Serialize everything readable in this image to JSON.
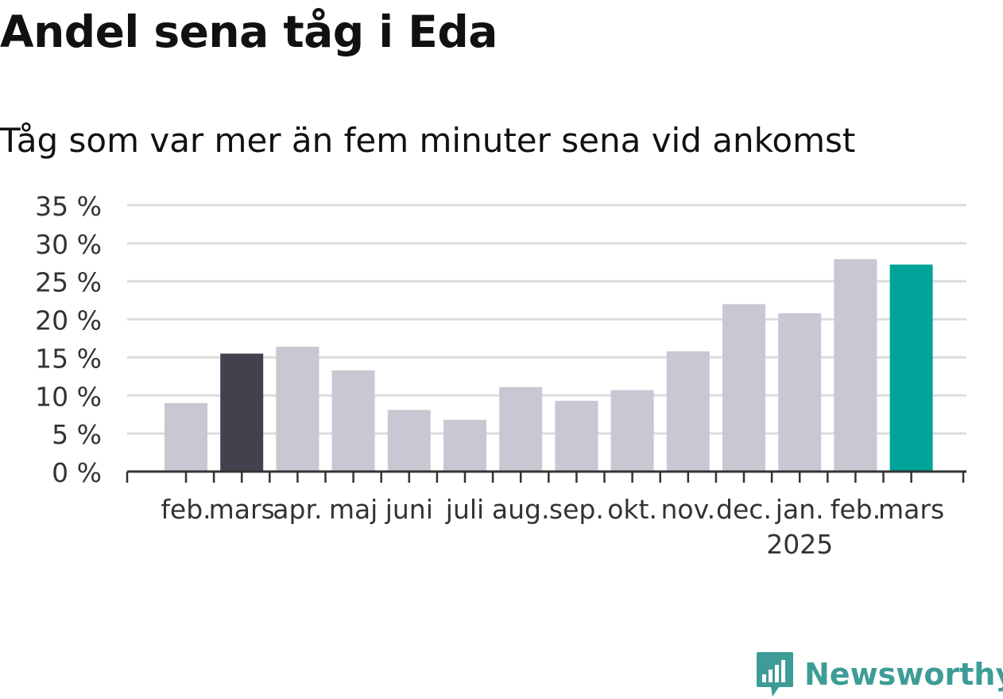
{
  "chart_data": {
    "type": "bar",
    "title": "Andel sena tåg i Eda",
    "subtitle": "Tåg som var mer än fem minuter sena vid ankomst",
    "xlabel": "",
    "ylabel": "",
    "ylim": [
      0,
      35
    ],
    "yticks": [
      0,
      5,
      10,
      15,
      20,
      25,
      30,
      35
    ],
    "ytick_suffix": " %",
    "grid": true,
    "categories": [
      "feb.",
      "mars",
      "apr.",
      "maj",
      "juni",
      "juli",
      "aug.",
      "sep.",
      "okt.",
      "nov.",
      "dec.",
      "jan.",
      "feb.",
      "mars"
    ],
    "year_label": {
      "text": "2025",
      "category_index": 11
    },
    "values": [
      9.0,
      15.5,
      16.4,
      13.3,
      8.1,
      6.8,
      11.1,
      9.3,
      10.7,
      15.8,
      22.0,
      20.8,
      27.9,
      27.2
    ],
    "bar_colors": [
      "#c8c7d2",
      "#44414f",
      "#c8c7d2",
      "#c8c7d2",
      "#c8c7d2",
      "#c8c7d2",
      "#c8c7d2",
      "#c8c7d2",
      "#c8c7d2",
      "#c8c7d2",
      "#c8c7d2",
      "#c8c7d2",
      "#c8c7d2",
      "#00a398"
    ],
    "colors": {
      "default_bar": "#c8c7d2",
      "highlight_previous": "#44414f",
      "highlight_current": "#00a398",
      "grid": "#dddddd",
      "axis": "#333333",
      "text": "#333333"
    }
  },
  "brand": {
    "name": "Newsworthy",
    "icon": "newsworthy-logo-icon",
    "color": "#3d9d96"
  }
}
